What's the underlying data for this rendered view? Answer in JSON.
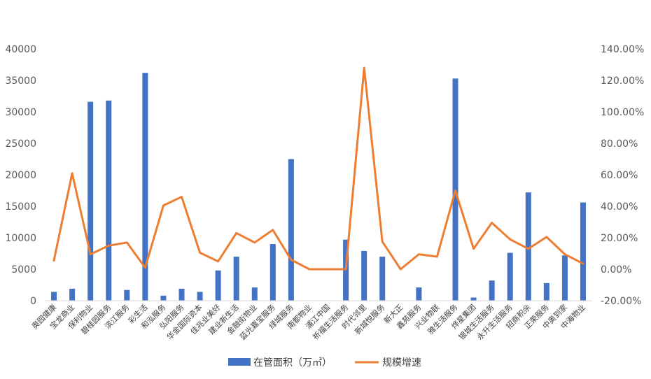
{
  "chart_data": {
    "type": "bar+line",
    "categories": [
      "奥园健康",
      "宝龙商业",
      "保利物业",
      "碧桂园服务",
      "滨江服务",
      "彩生活",
      "和泓服务",
      "弘阳服务",
      "华金国际资本",
      "佳兆业美好",
      "建业新生活",
      "金融街物业",
      "蓝光嘉宝服务",
      "绿城服务",
      "南都物业",
      "浦江中国",
      "祈福生活服务",
      "时代邻里",
      "新城悦服务",
      "新大正",
      "鑫苑服务",
      "兴业物联",
      "雅生活服务",
      "烨星集团",
      "银城生活服务",
      "永升生活服务",
      "招商积余",
      "正荣服务",
      "中奥到家",
      "中海物业"
    ],
    "series": [
      {
        "name": "在管面积（万㎡）",
        "type": "bar",
        "axis": "left",
        "color": "#4472C4",
        "values": [
          1400,
          1900,
          31600,
          31800,
          1700,
          36200,
          800,
          1900,
          1400,
          4800,
          7000,
          2100,
          9000,
          22500,
          0,
          0,
          9700,
          7900,
          7000,
          0,
          2100,
          0,
          35300,
          500,
          3200,
          7600,
          17200,
          2800,
          7200,
          15600
        ]
      },
      {
        "name": "规模增速",
        "type": "line",
        "axis": "right",
        "color": "#ED7D31",
        "values": [
          5.5,
          61,
          9.5,
          15,
          17,
          1,
          40.5,
          46,
          10.5,
          5,
          23,
          17,
          25,
          6,
          0,
          0,
          0,
          128,
          17.5,
          0,
          9.5,
          8,
          50,
          13,
          29.5,
          19,
          13,
          20.5,
          9.5,
          3.5
        ]
      }
    ],
    "y_left": {
      "min": 0,
      "max": 40000,
      "step": 5000,
      "ticks": [
        "0",
        "5000",
        "10000",
        "15000",
        "20000",
        "25000",
        "30000",
        "35000",
        "40000"
      ]
    },
    "y_right": {
      "min": -20,
      "max": 140,
      "step": 20,
      "ticks": [
        "-20.00%",
        "0.00%",
        "20.00%",
        "40.00%",
        "60.00%",
        "80.00%",
        "100.00%",
        "120.00%",
        "140.00%"
      ]
    },
    "title": "",
    "grid": false,
    "legend_position": "bottom"
  }
}
